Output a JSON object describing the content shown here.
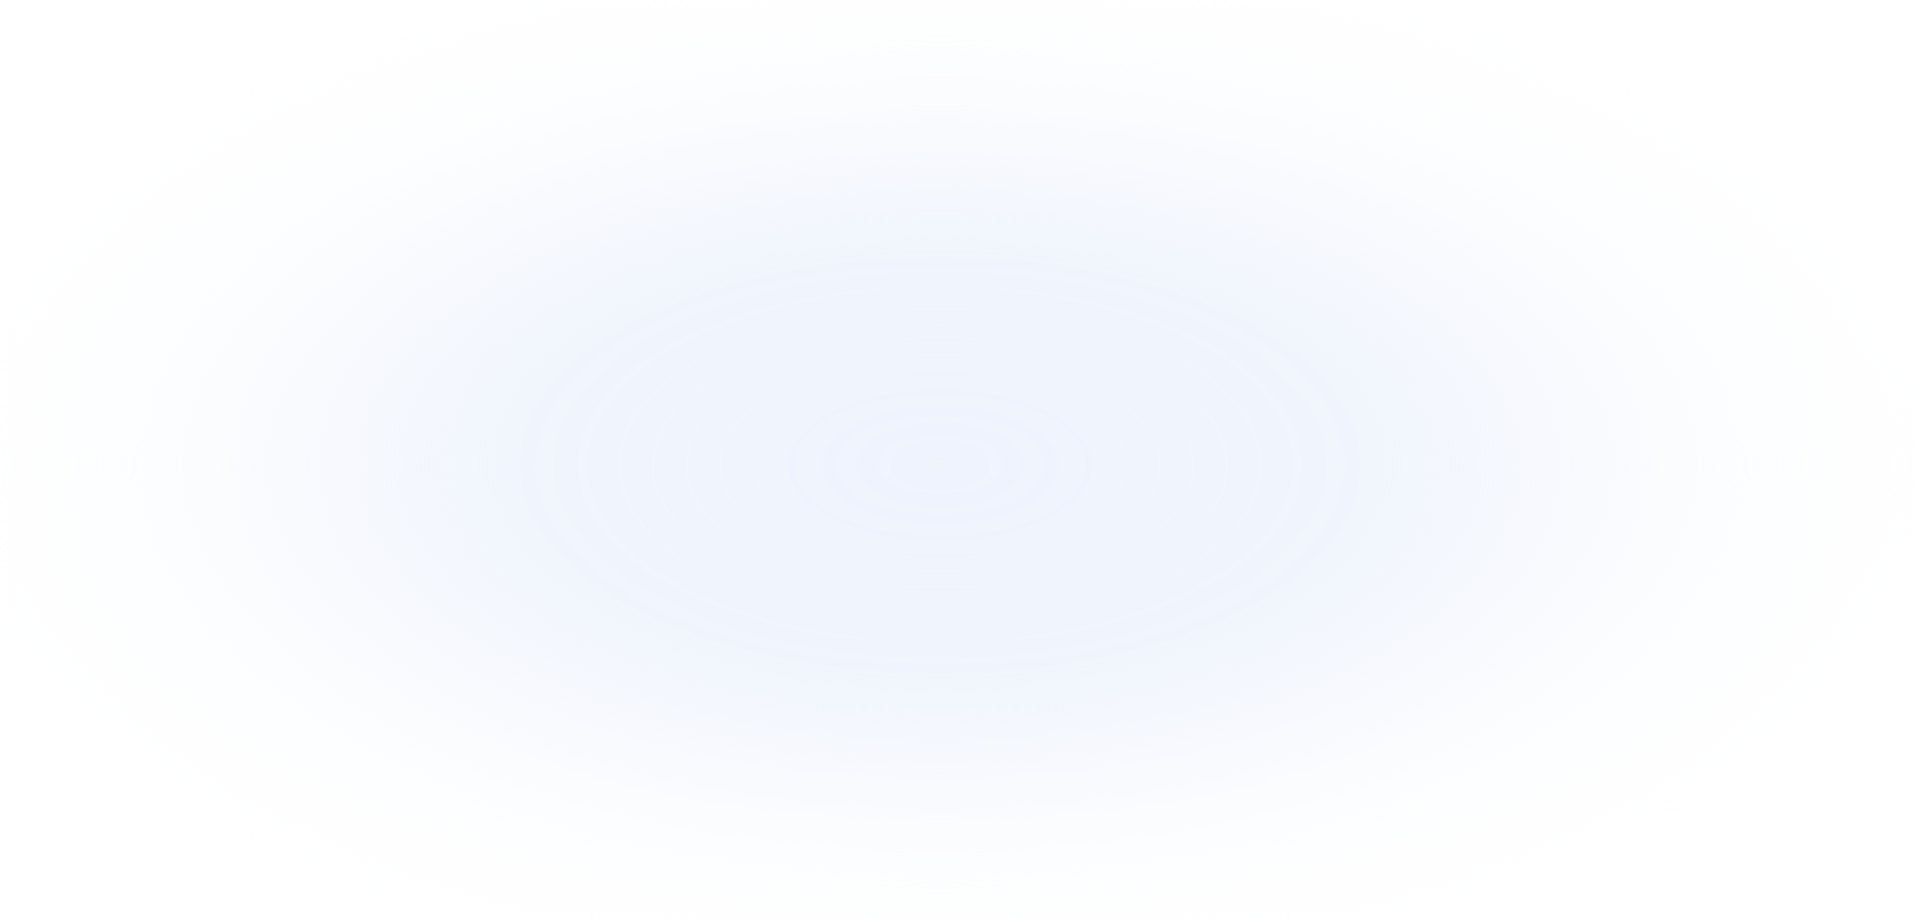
{
  "background": {
    "base_color": "#ffffff",
    "glow_color": "#eef3fd"
  }
}
